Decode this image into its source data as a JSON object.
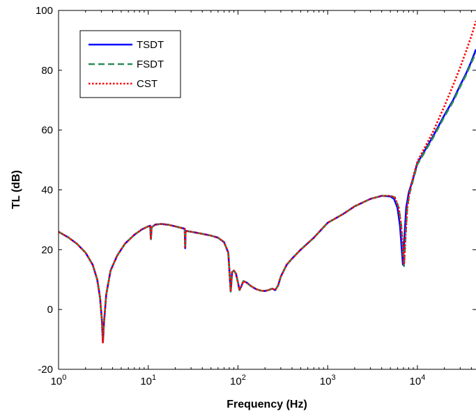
{
  "chart_data": {
    "type": "line",
    "title": "",
    "xlabel": "Frequency (Hz)",
    "ylabel": "TL (dB)",
    "xscale": "log",
    "xlim": [
      1,
      45000
    ],
    "ylim": [
      -20,
      100
    ],
    "grid": false,
    "legend_position": "top-left",
    "x_ticks": [
      {
        "value": 1,
        "base": "10",
        "exp": "0"
      },
      {
        "value": 10,
        "base": "10",
        "exp": "1"
      },
      {
        "value": 100,
        "base": "10",
        "exp": "2"
      },
      {
        "value": 1000,
        "base": "10",
        "exp": "3"
      },
      {
        "value": 10000,
        "base": "10",
        "exp": "4"
      }
    ],
    "y_ticks": [
      -20,
      0,
      20,
      40,
      60,
      80,
      100
    ],
    "series": [
      {
        "name": "TSDT",
        "color": "#0000ff",
        "style": "solid",
        "points": [
          [
            1,
            26
          ],
          [
            1.3,
            24
          ],
          [
            1.6,
            22
          ],
          [
            2,
            19
          ],
          [
            2.4,
            15
          ],
          [
            2.7,
            10
          ],
          [
            2.9,
            4
          ],
          [
            3.05,
            -4
          ],
          [
            3.12,
            -11
          ],
          [
            3.2,
            -5
          ],
          [
            3.4,
            5
          ],
          [
            3.8,
            13
          ],
          [
            4.5,
            18
          ],
          [
            5.5,
            22
          ],
          [
            7,
            25
          ],
          [
            8.5,
            26.8
          ],
          [
            10,
            27.8
          ],
          [
            10.5,
            28
          ],
          [
            10.7,
            23.5
          ],
          [
            10.9,
            27.5
          ],
          [
            12,
            28.4
          ],
          [
            14,
            28.6
          ],
          [
            17,
            28.3
          ],
          [
            20,
            27.8
          ],
          [
            24,
            27.2
          ],
          [
            25.5,
            27
          ],
          [
            25.8,
            20.5
          ],
          [
            26.1,
            26.3
          ],
          [
            30,
            26
          ],
          [
            40,
            25.3
          ],
          [
            50,
            24.7
          ],
          [
            60,
            24
          ],
          [
            70,
            22.5
          ],
          [
            78,
            19
          ],
          [
            81,
            11
          ],
          [
            83,
            6
          ],
          [
            86,
            12.5
          ],
          [
            90,
            13
          ],
          [
            95,
            12
          ],
          [
            100,
            9
          ],
          [
            104,
            6.5
          ],
          [
            108,
            7.5
          ],
          [
            115,
            9.5
          ],
          [
            125,
            9
          ],
          [
            140,
            7.8
          ],
          [
            160,
            6.8
          ],
          [
            180,
            6.3
          ],
          [
            200,
            6.2
          ],
          [
            220,
            6.5
          ],
          [
            240,
            7
          ],
          [
            260,
            6.5
          ],
          [
            280,
            8
          ],
          [
            300,
            11
          ],
          [
            350,
            15
          ],
          [
            400,
            17
          ],
          [
            500,
            20
          ],
          [
            700,
            24
          ],
          [
            1000,
            29
          ],
          [
            1500,
            32
          ],
          [
            2000,
            34.5
          ],
          [
            3000,
            37
          ],
          [
            4000,
            38
          ],
          [
            5000,
            37.8
          ],
          [
            5500,
            37
          ],
          [
            6000,
            34
          ],
          [
            6400,
            28
          ],
          [
            6700,
            20
          ],
          [
            6900,
            15
          ],
          [
            7100,
            22
          ],
          [
            7500,
            34
          ],
          [
            8000,
            39
          ],
          [
            9000,
            44
          ],
          [
            10000,
            49
          ],
          [
            12000,
            53
          ],
          [
            15000,
            58
          ],
          [
            20000,
            65
          ],
          [
            25000,
            70
          ],
          [
            30000,
            75
          ],
          [
            35000,
            79
          ],
          [
            40000,
            83
          ],
          [
            45000,
            87
          ]
        ]
      },
      {
        "name": "FSDT",
        "color": "#2e8b57",
        "style": "dashed",
        "points": [
          [
            1,
            26
          ],
          [
            1.3,
            24
          ],
          [
            1.6,
            22
          ],
          [
            2,
            19
          ],
          [
            2.4,
            15
          ],
          [
            2.7,
            10
          ],
          [
            2.9,
            4
          ],
          [
            3.05,
            -4
          ],
          [
            3.12,
            -11
          ],
          [
            3.2,
            -5
          ],
          [
            3.4,
            5
          ],
          [
            3.8,
            13
          ],
          [
            4.5,
            18
          ],
          [
            5.5,
            22
          ],
          [
            7,
            25
          ],
          [
            8.5,
            26.8
          ],
          [
            10,
            27.8
          ],
          [
            10.5,
            28
          ],
          [
            10.7,
            23.5
          ],
          [
            10.9,
            27.5
          ],
          [
            12,
            28.4
          ],
          [
            14,
            28.6
          ],
          [
            17,
            28.3
          ],
          [
            20,
            27.8
          ],
          [
            24,
            27.2
          ],
          [
            25.5,
            27
          ],
          [
            25.8,
            20.5
          ],
          [
            26.1,
            26.3
          ],
          [
            30,
            26
          ],
          [
            40,
            25.3
          ],
          [
            50,
            24.7
          ],
          [
            60,
            24
          ],
          [
            70,
            22.5
          ],
          [
            78,
            19
          ],
          [
            81,
            11
          ],
          [
            83,
            6
          ],
          [
            86,
            12.5
          ],
          [
            90,
            13
          ],
          [
            95,
            12
          ],
          [
            100,
            9
          ],
          [
            104,
            6.5
          ],
          [
            108,
            7.5
          ],
          [
            115,
            9.5
          ],
          [
            125,
            9
          ],
          [
            140,
            7.8
          ],
          [
            160,
            6.8
          ],
          [
            180,
            6.3
          ],
          [
            200,
            6.2
          ],
          [
            220,
            6.5
          ],
          [
            240,
            7
          ],
          [
            260,
            6.5
          ],
          [
            280,
            8
          ],
          [
            300,
            11
          ],
          [
            350,
            15
          ],
          [
            400,
            17
          ],
          [
            500,
            20
          ],
          [
            700,
            24
          ],
          [
            1000,
            29
          ],
          [
            1500,
            32
          ],
          [
            2000,
            34.5
          ],
          [
            3000,
            37
          ],
          [
            4000,
            38
          ],
          [
            5000,
            38
          ],
          [
            5600,
            37.5
          ],
          [
            6200,
            34
          ],
          [
            6600,
            28
          ],
          [
            6900,
            20
          ],
          [
            7100,
            14.5
          ],
          [
            7300,
            22
          ],
          [
            7700,
            34
          ],
          [
            8200,
            39
          ],
          [
            9000,
            43.5
          ],
          [
            10000,
            48.5
          ],
          [
            12000,
            52.5
          ],
          [
            15000,
            57.5
          ],
          [
            20000,
            64.5
          ],
          [
            25000,
            69.5
          ],
          [
            30000,
            74.5
          ],
          [
            35000,
            78.5
          ],
          [
            40000,
            82.5
          ],
          [
            45000,
            86
          ]
        ]
      },
      {
        "name": "CST",
        "color": "#ff0000",
        "style": "dotted",
        "points": [
          [
            1,
            26
          ],
          [
            1.3,
            24
          ],
          [
            1.6,
            22
          ],
          [
            2,
            19
          ],
          [
            2.4,
            15
          ],
          [
            2.7,
            10
          ],
          [
            2.9,
            4
          ],
          [
            3.05,
            -4
          ],
          [
            3.12,
            -11
          ],
          [
            3.2,
            -5
          ],
          [
            3.4,
            5
          ],
          [
            3.8,
            13
          ],
          [
            4.5,
            18
          ],
          [
            5.5,
            22
          ],
          [
            7,
            25
          ],
          [
            8.5,
            26.8
          ],
          [
            10,
            27.8
          ],
          [
            10.5,
            28
          ],
          [
            10.7,
            23.5
          ],
          [
            10.9,
            27.5
          ],
          [
            12,
            28.4
          ],
          [
            14,
            28.6
          ],
          [
            17,
            28.3
          ],
          [
            20,
            27.8
          ],
          [
            24,
            27.2
          ],
          [
            25.5,
            27
          ],
          [
            25.8,
            20.5
          ],
          [
            26.1,
            26.3
          ],
          [
            30,
            26
          ],
          [
            40,
            25.3
          ],
          [
            50,
            24.7
          ],
          [
            60,
            24
          ],
          [
            70,
            22.5
          ],
          [
            78,
            19
          ],
          [
            81,
            11
          ],
          [
            83,
            6
          ],
          [
            86,
            12.5
          ],
          [
            90,
            13
          ],
          [
            95,
            12
          ],
          [
            100,
            9
          ],
          [
            104,
            6.5
          ],
          [
            108,
            7.5
          ],
          [
            115,
            9.5
          ],
          [
            125,
            9
          ],
          [
            140,
            7.8
          ],
          [
            160,
            6.8
          ],
          [
            180,
            6.3
          ],
          [
            200,
            6.2
          ],
          [
            220,
            6.5
          ],
          [
            240,
            7
          ],
          [
            260,
            6.5
          ],
          [
            280,
            8
          ],
          [
            300,
            11
          ],
          [
            350,
            15
          ],
          [
            400,
            17
          ],
          [
            500,
            20
          ],
          [
            700,
            24
          ],
          [
            1000,
            29
          ],
          [
            1500,
            32
          ],
          [
            2000,
            34.5
          ],
          [
            3000,
            37
          ],
          [
            4000,
            38
          ],
          [
            5000,
            38
          ],
          [
            5600,
            37.5
          ],
          [
            6200,
            34
          ],
          [
            6600,
            28
          ],
          [
            6900,
            20
          ],
          [
            7100,
            15
          ],
          [
            7300,
            22
          ],
          [
            7700,
            34
          ],
          [
            8200,
            39.5
          ],
          [
            9000,
            44.5
          ],
          [
            10000,
            49.5
          ],
          [
            12000,
            54
          ],
          [
            15000,
            59.5
          ],
          [
            20000,
            68
          ],
          [
            25000,
            75
          ],
          [
            30000,
            81
          ],
          [
            35000,
            86.5
          ],
          [
            40000,
            91.5
          ],
          [
            45000,
            96.5
          ]
        ]
      }
    ]
  }
}
